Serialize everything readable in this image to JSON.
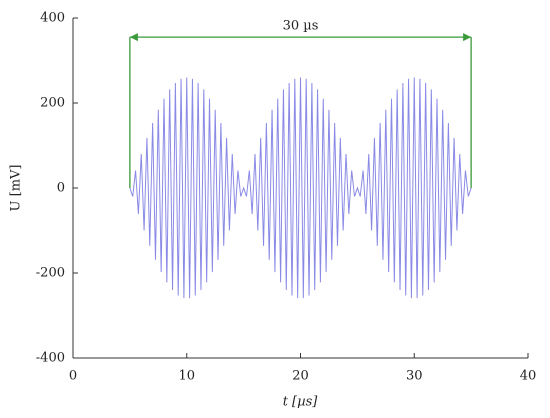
{
  "chart_data": {
    "type": "line",
    "xlabel": "t [µs]",
    "ylabel": "U [mV]",
    "xlim": [
      0,
      40
    ],
    "xticks": [
      0,
      10,
      20,
      30,
      40
    ],
    "ylim": [
      -400,
      400
    ],
    "yticks": [
      -400,
      -200,
      0,
      200,
      400
    ],
    "annotation": {
      "text": "30 µs",
      "x": [
        5,
        35
      ],
      "y": 355,
      "color": "#3a9a3a"
    },
    "x": [
      5,
      5.25,
      5.5,
      5.75,
      6,
      6.25,
      6.5,
      6.75,
      7,
      7.25,
      7.5,
      7.75,
      8,
      8.25,
      8.5,
      8.75,
      9,
      9.25,
      9.5,
      9.75,
      10,
      10.25,
      10.5,
      10.75,
      11,
      11.25,
      11.5,
      11.75,
      12,
      12.25,
      12.5,
      12.75,
      13,
      13.25,
      13.5,
      13.75,
      14,
      14.25,
      14.5,
      14.75,
      15,
      15.25,
      15.5,
      15.75,
      16,
      16.25,
      16.5,
      16.75,
      17,
      17.25,
      17.5,
      17.75,
      18,
      18.25,
      18.5,
      18.75,
      19,
      19.25,
      19.5,
      19.75,
      20,
      20.25,
      20.5,
      20.75,
      21,
      21.25,
      21.5,
      21.75,
      22,
      22.25,
      22.5,
      22.75,
      23,
      23.25,
      23.5,
      23.75,
      24,
      24.25,
      24.5,
      24.75,
      25,
      25.25,
      25.5,
      25.75,
      26,
      26.25,
      26.5,
      26.75,
      27,
      27.25,
      27.5,
      27.75,
      28,
      28.25,
      28.5,
      28.75,
      29,
      29.25,
      29.5,
      29.75,
      30,
      30.25,
      30.5,
      30.75,
      31,
      31.25,
      31.5,
      31.75,
      32,
      32.25,
      32.5,
      32.75,
      33,
      33.25,
      33.5,
      33.75,
      34,
      34.25,
      34.5,
      34.75,
      35
    ],
    "series": [
      {
        "color": "#8a8ae6",
        "values": [
          0,
          -20,
          41,
          -61,
          80,
          -100,
          118,
          -136,
          153,
          -169,
          184,
          -198,
          210,
          -222,
          232,
          -240,
          247,
          -253,
          257,
          -259,
          260,
          -259,
          257,
          -253,
          247,
          -240,
          232,
          -222,
          210,
          -198,
          184,
          -169,
          153,
          -136,
          118,
          -100,
          80,
          -61,
          41,
          -20,
          0,
          -20,
          41,
          -61,
          80,
          -100,
          118,
          -136,
          153,
          -169,
          184,
          -198,
          210,
          -222,
          232,
          -240,
          247,
          -253,
          257,
          -259,
          260,
          -259,
          257,
          -253,
          247,
          -240,
          232,
          -222,
          210,
          -198,
          184,
          -169,
          153,
          -136,
          118,
          -100,
          80,
          -61,
          41,
          -20,
          0,
          -20,
          41,
          -61,
          80,
          -100,
          118,
          -136,
          153,
          -169,
          184,
          -198,
          210,
          -222,
          232,
          -240,
          247,
          -253,
          257,
          -259,
          260,
          -259,
          257,
          -253,
          247,
          -240,
          232,
          -222,
          210,
          -198,
          184,
          -169,
          153,
          -136,
          118,
          -100,
          80,
          -61,
          41,
          -20,
          0
        ]
      }
    ]
  }
}
